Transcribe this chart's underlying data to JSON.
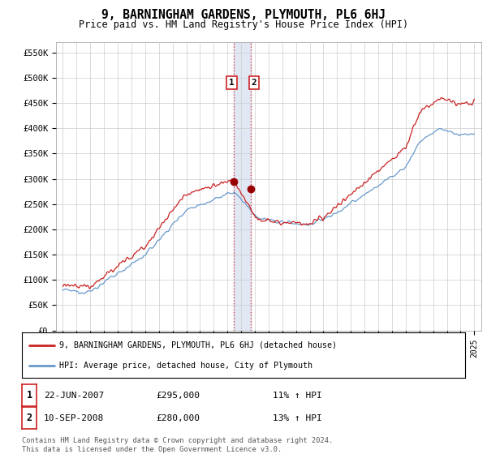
{
  "title": "9, BARNINGHAM GARDENS, PLYMOUTH, PL6 6HJ",
  "subtitle": "Price paid vs. HM Land Registry's House Price Index (HPI)",
  "ylabel_ticks": [
    "£0",
    "£50K",
    "£100K",
    "£150K",
    "£200K",
    "£250K",
    "£300K",
    "£350K",
    "£400K",
    "£450K",
    "£500K",
    "£550K"
  ],
  "ytick_values": [
    0,
    50000,
    100000,
    150000,
    200000,
    250000,
    300000,
    350000,
    400000,
    450000,
    500000,
    550000
  ],
  "ylim": [
    0,
    570000
  ],
  "sale1_date_num": 2007.47,
  "sale1_price": 295000,
  "sale1_label": "1",
  "sale2_date_num": 2008.7,
  "sale2_price": 280000,
  "sale2_label": "2",
  "vline_color": "#dd4444",
  "vline_style": ":",
  "shade_color": "#aabbdd",
  "sale_marker_color": "#990000",
  "hpi_line_color": "#6699cc",
  "price_line_color": "#cc2222",
  "legend1_label": "9, BARNINGHAM GARDENS, PLYMOUTH, PL6 6HJ (detached house)",
  "legend2_label": "HPI: Average price, detached house, City of Plymouth",
  "table_rows": [
    {
      "num": "1",
      "date": "22-JUN-2007",
      "price": "£295,000",
      "change": "11% ↑ HPI"
    },
    {
      "num": "2",
      "date": "10-SEP-2008",
      "price": "£280,000",
      "change": "13% ↑ HPI"
    }
  ],
  "footer": "Contains HM Land Registry data © Crown copyright and database right 2024.\nThis data is licensed under the Open Government Licence v3.0.",
  "background_color": "#ffffff",
  "grid_color": "#cccccc",
  "xlim_start": 1994.5,
  "xlim_end": 2025.5
}
